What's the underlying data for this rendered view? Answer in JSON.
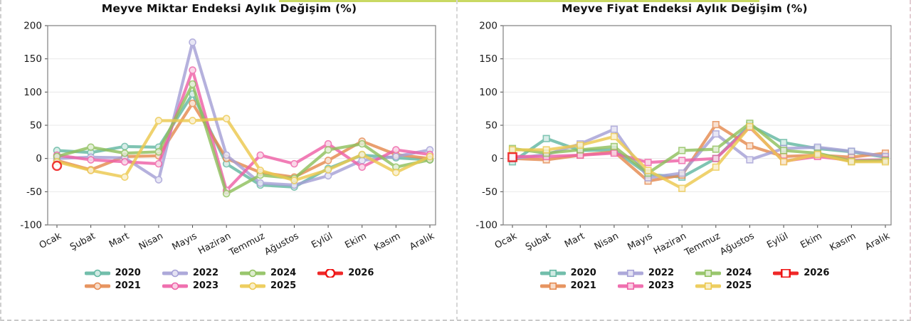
{
  "page": {
    "top_accent_color": "#c9d963",
    "background_color": "#ffffff",
    "dashed_border_color": "#cccccc",
    "grid_color": "#e9e9e9",
    "spine_color": "#808080"
  },
  "chart_data": [
    {
      "type": "line",
      "title": "Meyve Miktar Endeksi Aylık Değişim (%)",
      "marker_shape": "circle",
      "ylim": [
        -100,
        200
      ],
      "y_ticks": [
        200,
        150,
        100,
        50,
        0,
        -50,
        -100
      ],
      "grid": true,
      "legend_position": "bottom",
      "categories": [
        "Ocak",
        "Şubat",
        "Mart",
        "Nisan",
        "Mayıs",
        "Haziran",
        "Temmuz",
        "Ağustos",
        "Eylül",
        "Ekim",
        "Kasım",
        "Aralık"
      ],
      "series": [
        {
          "name": "2020",
          "color": "#63b8a2",
          "values": [
            12,
            9,
            18,
            17,
            97,
            -8,
            -40,
            -43,
            -15,
            5,
            1,
            -2
          ]
        },
        {
          "name": "2021",
          "color": "#e58a50",
          "values": [
            -3,
            -17,
            3,
            4,
            83,
            0,
            -21,
            -28,
            -3,
            26,
            6,
            0
          ]
        },
        {
          "name": "2022",
          "color": "#a5a0d6",
          "values": [
            0,
            2,
            1,
            -32,
            175,
            5,
            -37,
            -40,
            -26,
            -3,
            3,
            13
          ]
        },
        {
          "name": "2023",
          "color": "#ee61a7",
          "values": [
            5,
            -2,
            -5,
            -8,
            133,
            -48,
            5,
            -8,
            22,
            -13,
            13,
            6
          ]
        },
        {
          "name": "2024",
          "color": "#8fc05e",
          "values": [
            3,
            17,
            8,
            10,
            112,
            -53,
            -25,
            -30,
            13,
            22,
            -13,
            -2
          ]
        },
        {
          "name": "2025",
          "color": "#ecc94f",
          "values": [
            -5,
            -18,
            -28,
            57,
            57,
            60,
            -18,
            -33,
            -17,
            6,
            -21,
            3
          ]
        },
        {
          "name": "2026",
          "color": "#ee1111",
          "values": [
            -11,
            null,
            null,
            null,
            null,
            null,
            null,
            null,
            null,
            null,
            null,
            null
          ]
        }
      ]
    },
    {
      "type": "line",
      "title": "Meyve Fiyat Endeksi Aylık Değişim (%)",
      "marker_shape": "square",
      "ylim": [
        -100,
        200
      ],
      "y_ticks": [
        200,
        150,
        100,
        50,
        0,
        -50,
        -100
      ],
      "grid": true,
      "legend_position": "bottom",
      "categories": [
        "Ocak",
        "Şubat",
        "Mart",
        "Nisan",
        "Mayıs",
        "Haziran",
        "Temmuz",
        "Ağustos",
        "Eylül",
        "Ekim",
        "Kasım",
        "Aralık"
      ],
      "series": [
        {
          "name": "2020",
          "color": "#63b8a2",
          "values": [
            -5,
            30,
            12,
            13,
            -24,
            -28,
            0,
            50,
            24,
            15,
            10,
            2
          ]
        },
        {
          "name": "2021",
          "color": "#e58a50",
          "values": [
            0,
            -2,
            5,
            10,
            -34,
            -25,
            51,
            19,
            3,
            5,
            2,
            8
          ]
        },
        {
          "name": "2022",
          "color": "#a5a0d6",
          "values": [
            0,
            6,
            22,
            44,
            -29,
            -22,
            37,
            -2,
            15,
            17,
            11,
            3
          ]
        },
        {
          "name": "2023",
          "color": "#ee61a7",
          "values": [
            3,
            3,
            5,
            8,
            -6,
            -3,
            0,
            47,
            -4,
            3,
            -3,
            -2
          ]
        },
        {
          "name": "2024",
          "color": "#8fc05e",
          "values": [
            15,
            8,
            13,
            18,
            -22,
            12,
            14,
            53,
            12,
            8,
            -4,
            -3
          ]
        },
        {
          "name": "2025",
          "color": "#ecc94f",
          "values": [
            13,
            13,
            20,
            33,
            -18,
            -45,
            -13,
            48,
            -5,
            6,
            -5,
            -5
          ]
        },
        {
          "name": "2026",
          "color": "#ee1111",
          "values": [
            2,
            null,
            null,
            null,
            null,
            null,
            null,
            null,
            null,
            null,
            null,
            null
          ]
        }
      ]
    }
  ]
}
